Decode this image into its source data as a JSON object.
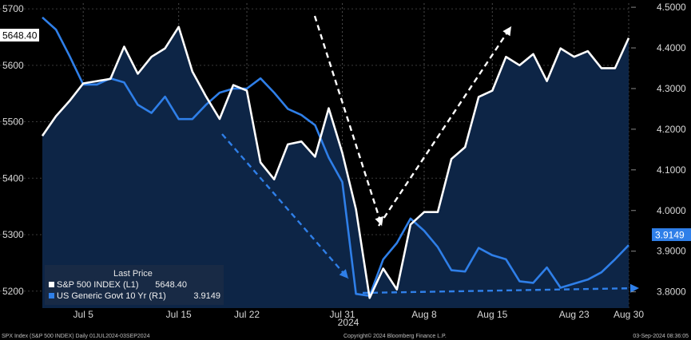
{
  "chart_data": {
    "type": "line",
    "year_label": "2024",
    "x_ticks": [
      "Jul 5",
      "Jul 15",
      "Jul 22",
      "Jul 31",
      "Aug 8",
      "Aug 15",
      "Aug 23",
      "Aug 30"
    ],
    "y_left": {
      "lim": [
        5170,
        5710
      ],
      "ticks": [
        "5700",
        "5600",
        "5500",
        "5400",
        "5300",
        "5200"
      ]
    },
    "y_right": {
      "lim": [
        3.76,
        4.51
      ],
      "ticks": [
        "4.5000",
        "4.4000",
        "4.3000",
        "4.2000",
        "4.1000",
        "4.0000",
        "3.9000",
        "3.8000"
      ]
    },
    "series": [
      {
        "name": "S&P 500 INDEX  (L1)",
        "axis": "left",
        "color": "#ffffff",
        "last_value": "5648.40",
        "values": [
          5475,
          5510,
          5537,
          5568,
          5572,
          5576,
          5633,
          5585,
          5615,
          5630,
          5668,
          5589,
          5545,
          5505,
          5565,
          5555,
          5428,
          5398,
          5460,
          5465,
          5438,
          5524,
          5445,
          5345,
          5188,
          5240,
          5203,
          5318,
          5340,
          5340,
          5434,
          5455,
          5544,
          5555,
          5615,
          5600,
          5620,
          5572,
          5630,
          5615,
          5625,
          5595,
          5595,
          5648.4
        ]
      },
      {
        "name": "US Generic Govt 10 Yr  (R1)",
        "axis": "right",
        "color": "#2f7fe8",
        "last_value": "3.9149",
        "values": [
          4.475,
          4.445,
          4.38,
          4.31,
          4.31,
          4.325,
          4.315,
          4.26,
          4.24,
          4.28,
          4.225,
          4.225,
          4.26,
          4.29,
          4.3,
          4.3,
          4.325,
          4.29,
          4.25,
          4.235,
          4.21,
          4.13,
          4.07,
          3.795,
          3.79,
          3.88,
          3.92,
          3.98,
          3.95,
          3.91,
          3.853,
          3.85,
          3.908,
          3.89,
          3.88,
          3.826,
          3.822,
          3.86,
          3.81,
          3.82,
          3.83,
          3.848,
          3.88,
          3.9149
        ]
      }
    ],
    "legend": {
      "title": "Last Price",
      "placement": "bottom-left"
    },
    "annotations": "dashed trend arrows (white and blue)"
  },
  "footer": {
    "left": "SPX Index (S&P 500 INDEX)  Daily 01JUL2024-03SEP2024",
    "center": "Copyright© 2024 Bloomberg Finance L.P.",
    "right": "03-Sep-2024 08:36:05"
  }
}
